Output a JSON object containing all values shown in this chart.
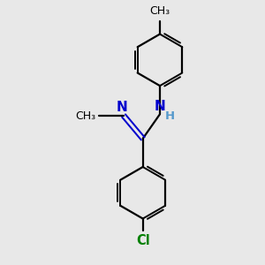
{
  "background_color": "#e8e8e8",
  "bond_color": "#000000",
  "n_color": "#0000cd",
  "cl_color": "#008000",
  "h_color": "#5599cc",
  "line_width": 1.6,
  "figsize": [
    3.0,
    3.0
  ],
  "dpi": 100,
  "xlim": [
    0,
    10
  ],
  "ylim": [
    0,
    10
  ]
}
